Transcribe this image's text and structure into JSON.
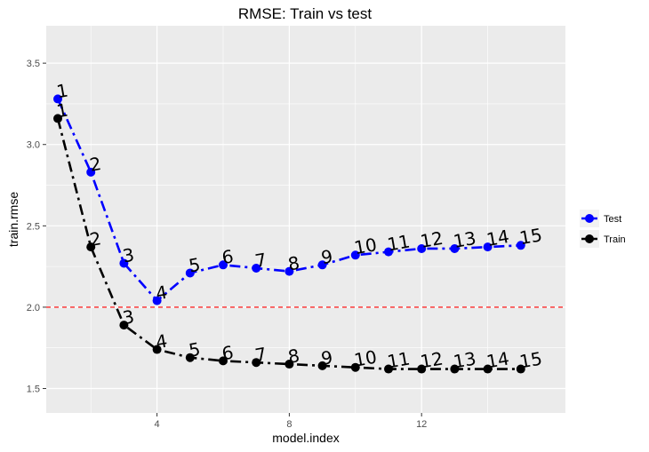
{
  "chart_data": {
    "type": "line",
    "title": "RMSE: Train vs test",
    "xlabel": "model.index",
    "ylabel": "train.rmse",
    "xlim": [
      0.65,
      16.35
    ],
    "ylim": [
      1.35,
      3.73
    ],
    "x_ticks": [
      4,
      8,
      12
    ],
    "x_tick_labels": [
      "4",
      "8",
      "12"
    ],
    "y_ticks": [
      1.5,
      2.0,
      2.5,
      3.0,
      3.5
    ],
    "y_tick_labels": [
      "1.5",
      "2.0",
      "2.5",
      "3.0",
      "3.5"
    ],
    "grid": true,
    "legend_position": "right",
    "reference_line": {
      "y": 2.0,
      "color": "#ff0000",
      "style": "dashed"
    },
    "x": [
      1,
      2,
      3,
      4,
      5,
      6,
      7,
      8,
      9,
      10,
      11,
      12,
      13,
      14,
      15
    ],
    "point_labels": [
      "1",
      "2",
      "3",
      "4",
      "5",
      "6",
      "7",
      "8",
      "9",
      "10",
      "11",
      "12",
      "13",
      "14",
      "15"
    ],
    "series": [
      {
        "name": "Test",
        "color": "#0000ff",
        "values": [
          3.28,
          2.83,
          2.27,
          2.04,
          2.21,
          2.26,
          2.24,
          2.22,
          2.26,
          2.32,
          2.34,
          2.36,
          2.36,
          2.37,
          2.38
        ]
      },
      {
        "name": "Train",
        "color": "#000000",
        "values": [
          3.16,
          2.37,
          1.89,
          1.74,
          1.69,
          1.67,
          1.66,
          1.65,
          1.64,
          1.63,
          1.62,
          1.62,
          1.62,
          1.62,
          1.62
        ]
      }
    ]
  }
}
